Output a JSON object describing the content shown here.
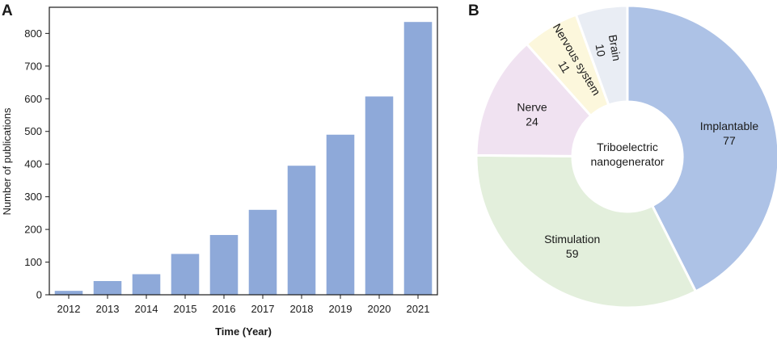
{
  "panels": {
    "a": "A",
    "b": "B"
  },
  "chart_data": [
    {
      "type": "bar",
      "categories": [
        "2012",
        "2013",
        "2014",
        "2015",
        "2016",
        "2017",
        "2018",
        "2019",
        "2020",
        "2021"
      ],
      "values": [
        12,
        42,
        63,
        125,
        183,
        260,
        395,
        490,
        607,
        835
      ],
      "xlabel": "Time (Year)",
      "ylabel": "Number of publications",
      "ylim": [
        0,
        880
      ],
      "yticks": [
        0,
        100,
        200,
        300,
        400,
        500,
        600,
        700,
        800
      ],
      "color": "#8ea9d9",
      "grid": false
    },
    {
      "type": "pie",
      "donut": true,
      "center_label": [
        "Triboelectric",
        "nanogenerator"
      ],
      "slices": [
        {
          "label": "Implantable",
          "value": 77,
          "color": "#adc2e6"
        },
        {
          "label": "Stimulation",
          "value": 59,
          "color": "#e3efdc"
        },
        {
          "label": "Nerve",
          "value": 24,
          "color": "#f0e2f1"
        },
        {
          "label": "Nervous system",
          "value": 11,
          "color": "#fcf7dc"
        },
        {
          "label": "Brain",
          "value": 10,
          "color": "#e9edf4"
        }
      ]
    }
  ]
}
